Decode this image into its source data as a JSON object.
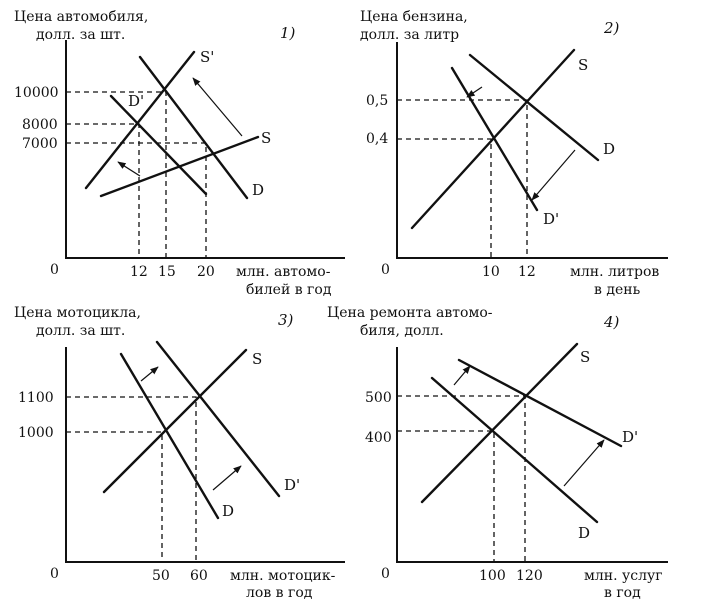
{
  "panels": [
    {
      "number": "1)",
      "y_title": [
        "Цена автомобиля,",
        "долл. за шт."
      ],
      "x_title": [
        "млн. автомо-",
        "билей в год"
      ],
      "origin": "0",
      "y_ticks": [
        "10000",
        "8000",
        "7000"
      ],
      "x_ticks": [
        "12",
        "15",
        "20"
      ],
      "curve_labels": [
        "S'",
        "S",
        "D'",
        "D"
      ]
    },
    {
      "number": "2)",
      "y_title": [
        "Цена бензина,",
        "долл. за литр"
      ],
      "x_title": [
        "млн. литров",
        "в день"
      ],
      "origin": "0",
      "y_ticks": [
        "0,5",
        "0,4"
      ],
      "x_ticks": [
        "10",
        "12"
      ],
      "curve_labels": [
        "S",
        "D",
        "D'"
      ]
    },
    {
      "number": "3)",
      "y_title": [
        "Цена мотоцикла,",
        "долл. за шт."
      ],
      "x_title": [
        "млн. мотоцик-",
        "лов в год"
      ],
      "origin": "0",
      "y_ticks": [
        "1100",
        "1000"
      ],
      "x_ticks": [
        "50",
        "60"
      ],
      "curve_labels": [
        "S",
        "D'",
        "D"
      ]
    },
    {
      "number": "4)",
      "y_title": [
        "Цена ремонта автомо-",
        "биля, долл."
      ],
      "x_title": [
        "млн. услуг",
        "в год"
      ],
      "origin": "0",
      "y_ticks": [
        "500",
        "400"
      ],
      "x_ticks": [
        "100",
        "120"
      ],
      "curve_labels": [
        "S",
        "D'",
        "D"
      ]
    }
  ]
}
